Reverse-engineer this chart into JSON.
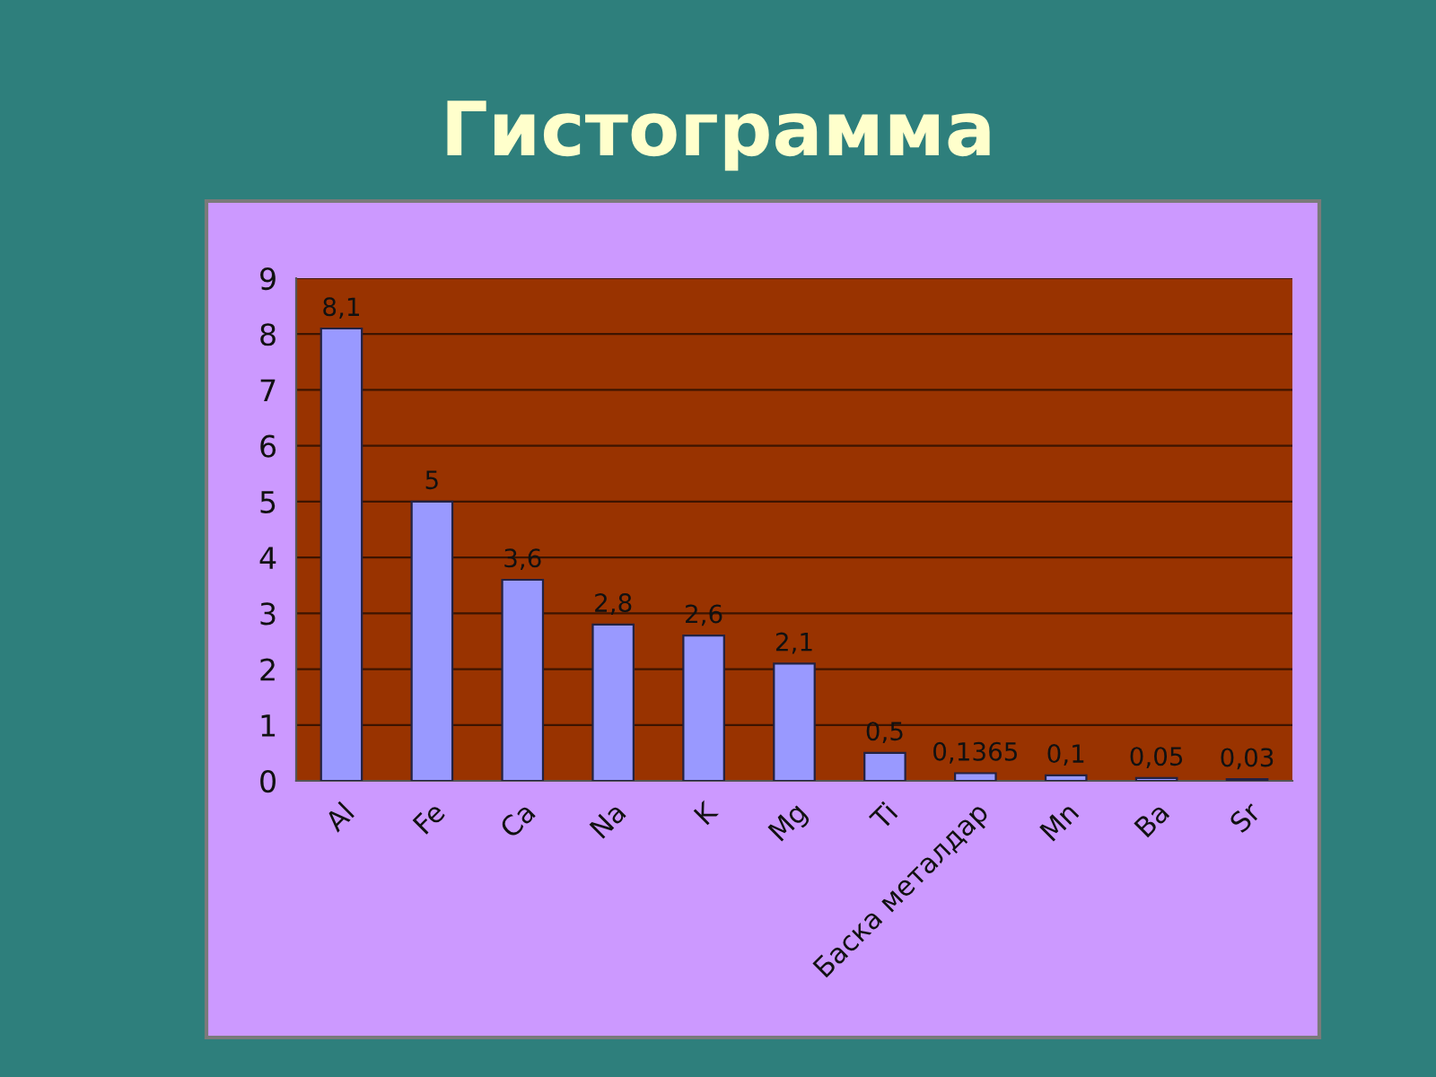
{
  "chart_data": {
    "type": "bar",
    "title": "Гистограмма",
    "categories": [
      "Al",
      "Fe",
      "Ca",
      "Na",
      "K",
      "Mg",
      "Ti",
      "Баска металдар",
      "Mn",
      "Ba",
      "Sr"
    ],
    "values": [
      8.1,
      5,
      3.6,
      2.8,
      2.6,
      2.1,
      0.5,
      0.1365,
      0.1,
      0.05,
      0.03
    ],
    "value_labels": [
      "8,1",
      "5",
      "3,6",
      "2,8",
      "2,6",
      "2,1",
      "0,5",
      "0,1365",
      "0,1",
      "0,05",
      "0,03"
    ],
    "color": "#9999ff",
    "ylim": [
      0,
      9
    ],
    "yticks": [
      0,
      1,
      2,
      3,
      4,
      5,
      6,
      7,
      8,
      9
    ],
    "grid": "y"
  }
}
